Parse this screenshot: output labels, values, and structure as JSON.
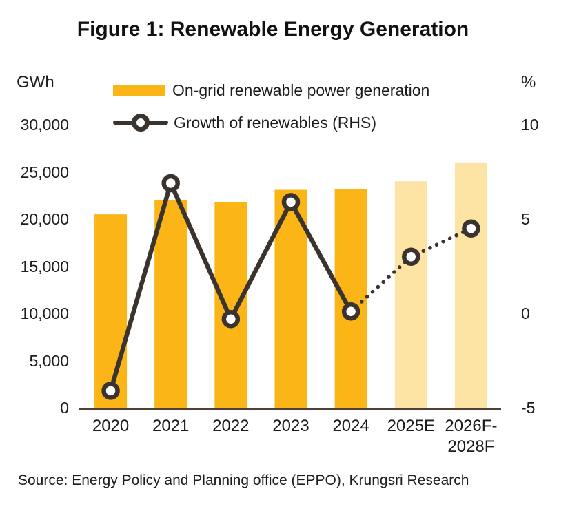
{
  "title": "Figure 1: Renewable Energy Generation",
  "source": "Source: Energy Policy and Planning office (EPPO), Krungsri Research",
  "legend": {
    "bar_label": "On-grid renewable power generation",
    "line_label": "Growth of renewables (RHS)"
  },
  "axes": {
    "left": {
      "unit": "GWh",
      "ticks": [
        "30,000",
        "25,000",
        "20,000",
        "15,000",
        "10,000",
        "5,000",
        "0"
      ]
    },
    "right": {
      "unit": "%",
      "ticks": [
        "10",
        "5",
        "0",
        "-5"
      ]
    }
  },
  "chart_data": {
    "type": "bar+line",
    "categories": [
      "2020",
      "2021",
      "2022",
      "2023",
      "2024",
      "2025E",
      "2026F-2028F"
    ],
    "categories_display": [
      [
        "2020"
      ],
      [
        "2021"
      ],
      [
        "2022"
      ],
      [
        "2023"
      ],
      [
        "2024"
      ],
      [
        "2025E"
      ],
      [
        "2026F-",
        "2028F"
      ]
    ],
    "series": [
      {
        "name": "On-grid renewable power generation",
        "type": "bar",
        "axis": "left",
        "values": [
          20500,
          22000,
          21800,
          23100,
          23200,
          24000,
          26000
        ],
        "forecast_from_index": 5
      },
      {
        "name": "Growth of renewables (RHS)",
        "type": "line",
        "axis": "right",
        "values": [
          -4.1,
          6.9,
          -0.3,
          5.9,
          0.1,
          3.0,
          4.5
        ],
        "dotted_from_index": 4
      }
    ],
    "title": "Figure 1: Renewable Energy Generation",
    "xlabel": "",
    "ylabel_left": "GWh",
    "ylabel_right": "%",
    "ylim_left": [
      0,
      30000
    ],
    "ylim_right": [
      -5,
      10
    ],
    "grid": false,
    "legend_position": "top"
  },
  "colors": {
    "bar": "#FBB517",
    "bar_forecast": "#FDE3A4",
    "line": "#3B342E",
    "axis_line": "#4A423A",
    "text": "#1C1C1C"
  }
}
